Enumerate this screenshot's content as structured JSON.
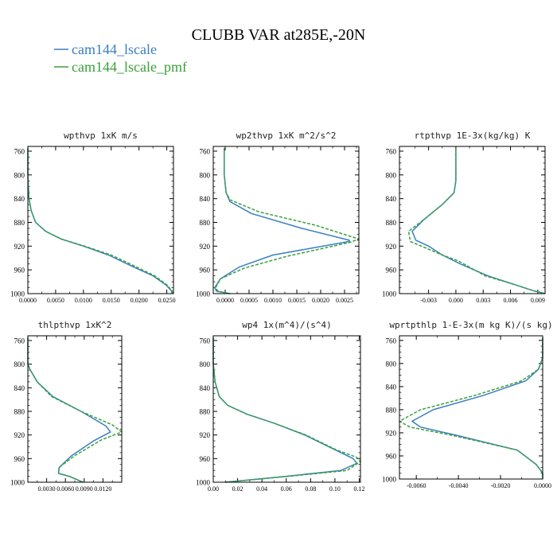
{
  "figure": {
    "title": "CLUBB VAR at285E,-20N",
    "legend": [
      {
        "label": "cam144_lscale",
        "color": "#3a7fc1"
      },
      {
        "label": "cam144_lscale_pmf",
        "color": "#3aa03a"
      }
    ]
  },
  "chart_data": [
    {
      "type": "line",
      "title": "wpthvp  1xK m/s",
      "xlim": [
        0,
        0.0262
      ],
      "ylim": [
        1000,
        752
      ],
      "xticks": [
        0,
        0.005,
        0.01,
        0.015,
        0.02,
        0.025
      ],
      "xticklabels": [
        "0.0000",
        "0.0050",
        "0.0100",
        "0.0150",
        "0.0200",
        "0.0250"
      ],
      "yticks": [
        760,
        800,
        840,
        880,
        920,
        960,
        1000
      ],
      "series": [
        {
          "name": "cam144_lscale",
          "color": "#3a7fc1",
          "dash": "",
          "x": [
            0,
            0,
            0.0002,
            0.0006,
            0.0014,
            0.0032,
            0.006,
            0.01,
            0.0145,
            0.019,
            0.0225,
            0.0248,
            0.0258,
            0.026
          ],
          "y": [
            755,
            800,
            840,
            860,
            880,
            895,
            908,
            920,
            935,
            955,
            970,
            985,
            995,
            1000
          ]
        },
        {
          "name": "cam144_lscale_pmf",
          "color": "#3aa03a",
          "dash": "4 2",
          "x": [
            0,
            0,
            0.0002,
            0.0006,
            0.0014,
            0.0032,
            0.006,
            0.0102,
            0.015,
            0.0195,
            0.0228,
            0.025,
            0.0259,
            0.0262
          ],
          "y": [
            755,
            800,
            840,
            860,
            880,
            895,
            908,
            920,
            935,
            955,
            970,
            985,
            995,
            1000
          ]
        }
      ]
    },
    {
      "type": "line",
      "title": "wp2thvp  1xK m^2/s^2",
      "xlim": [
        -0.00025,
        0.0028
      ],
      "ylim": [
        1000,
        752
      ],
      "xticks": [
        0,
        0.0005,
        0.001,
        0.0015,
        0.002,
        0.0025
      ],
      "xticklabels": [
        "0.0000",
        "0.0005",
        "0.0010",
        "0.0015",
        "0.0020",
        "0.0025"
      ],
      "yticks": [
        760,
        800,
        840,
        880,
        920,
        960,
        1000
      ],
      "series": [
        {
          "name": "cam144_lscale",
          "color": "#3a7fc1",
          "dash": "",
          "x": [
            -2e-05,
            -2e-05,
            2e-05,
            0.0001,
            0.00055,
            0.0016,
            0.0026,
            0.0026,
            0.001,
            0.0003,
            -0.0001,
            -0.00022,
            -0.00018,
            0.0001
          ],
          "y": [
            755,
            800,
            830,
            845,
            865,
            890,
            910,
            912,
            935,
            955,
            975,
            990,
            996,
            1000
          ]
        },
        {
          "name": "cam144_lscale_pmf",
          "color": "#3aa03a",
          "dash": "4 2",
          "x": [
            -2e-05,
            -2e-05,
            2e-05,
            0.0001,
            0.0007,
            0.0019,
            0.0028,
            0.0026,
            0.0013,
            0.0004,
            -0.0001,
            -0.0002,
            -0.00015,
            0.0001
          ],
          "y": [
            755,
            800,
            830,
            842,
            862,
            885,
            908,
            914,
            937,
            957,
            975,
            990,
            996,
            1000
          ]
        }
      ]
    },
    {
      "type": "line",
      "title": "rtpthvp  1E-3x(kg/kg) K",
      "xlim": [
        -0.0062,
        0.0098
      ],
      "ylim": [
        1000,
        752
      ],
      "xticks": [
        -0.003,
        0,
        0.003,
        0.006,
        0.009
      ],
      "xticklabels": [
        "-0.003",
        "0.000",
        "0.003",
        "0.006",
        "0.009"
      ],
      "yticks": [
        760,
        800,
        840,
        880,
        920,
        960,
        1000
      ],
      "series": [
        {
          "name": "cam144_lscale",
          "color": "#3a7fc1",
          "dash": "",
          "x": [
            0,
            0,
            -0.0002,
            -0.0015,
            -0.0035,
            -0.0048,
            -0.0044,
            -0.003,
            -0.0015,
            0.0005,
            0.0035,
            0.0065,
            0.0085,
            0.0098
          ],
          "y": [
            755,
            810,
            830,
            850,
            875,
            895,
            910,
            920,
            935,
            950,
            970,
            985,
            995,
            1000
          ]
        },
        {
          "name": "cam144_lscale_pmf",
          "color": "#3aa03a",
          "dash": "4 2",
          "x": [
            0,
            0,
            -0.0002,
            -0.0015,
            -0.0035,
            -0.0052,
            -0.005,
            -0.0038,
            -0.0015,
            0.0003,
            0.0032,
            0.0065,
            0.0085,
            0.0098
          ],
          "y": [
            755,
            810,
            830,
            850,
            875,
            895,
            912,
            920,
            935,
            945,
            970,
            985,
            995,
            1000
          ]
        }
      ]
    },
    {
      "type": "line",
      "title": "thlpthvp  1xK^2",
      "xlim": [
        0,
        0.015
      ],
      "ylim": [
        1000,
        752
      ],
      "xticks": [
        0.003,
        0.006,
        0.009,
        0.012
      ],
      "xticklabels": [
        "0.0030",
        "0.0060",
        "0.0090",
        "0.0120"
      ],
      "yticks": [
        760,
        800,
        840,
        880,
        920,
        960,
        1000
      ],
      "series": [
        {
          "name": "cam144_lscale",
          "color": "#3a7fc1",
          "dash": "",
          "x": [
            0,
            0,
            0.0004,
            0.0015,
            0.004,
            0.0085,
            0.0125,
            0.0132,
            0.0105,
            0.007,
            0.005,
            0.0049,
            0.0066,
            0.0088
          ],
          "y": [
            755,
            800,
            810,
            830,
            855,
            880,
            905,
            915,
            930,
            955,
            975,
            985,
            990,
            1000
          ]
        },
        {
          "name": "cam144_lscale_pmf",
          "color": "#3aa03a",
          "dash": "4 2",
          "x": [
            0,
            0,
            0.0004,
            0.0015,
            0.0038,
            0.0085,
            0.0135,
            0.015,
            0.0118,
            0.0075,
            0.005,
            0.0049,
            0.0066,
            0.0088
          ],
          "y": [
            755,
            800,
            810,
            830,
            855,
            880,
            903,
            915,
            928,
            955,
            975,
            985,
            990,
            1000
          ]
        }
      ]
    },
    {
      "type": "line",
      "title": "wp4  1x(m^4)/(s^4)",
      "xlim": [
        0,
        0.121
      ],
      "ylim": [
        1000,
        752
      ],
      "xticks": [
        0,
        0.02,
        0.04,
        0.06,
        0.08,
        0.1,
        0.12
      ],
      "xticklabels": [
        "0.00",
        "0.02",
        "0.04",
        "0.06",
        "0.08",
        "0.10",
        "0.12"
      ],
      "yticks": [
        760,
        800,
        840,
        880,
        920,
        960,
        1000
      ],
      "series": [
        {
          "name": "cam144_lscale",
          "color": "#3a7fc1",
          "dash": "",
          "x": [
            0,
            0,
            0.0015,
            0.005,
            0.012,
            0.028,
            0.05,
            0.075,
            0.1,
            0.115,
            0.118,
            0.105,
            0.06,
            0.01
          ],
          "y": [
            755,
            800,
            830,
            855,
            870,
            885,
            900,
            920,
            945,
            960,
            968,
            980,
            990,
            1000
          ]
        },
        {
          "name": "cam144_lscale_pmf",
          "color": "#3aa03a",
          "dash": "4 2",
          "x": [
            0,
            0,
            0.0015,
            0.005,
            0.012,
            0.028,
            0.05,
            0.076,
            0.101,
            0.118,
            0.121,
            0.11,
            0.062,
            0.01
          ],
          "y": [
            755,
            800,
            830,
            855,
            870,
            885,
            900,
            920,
            945,
            958,
            965,
            980,
            990,
            1000
          ]
        }
      ]
    },
    {
      "type": "line",
      "title": "wprtpthlp  1-E-3x(m kg K)/(s kg)",
      "xlim": [
        -0.0068,
        0
      ],
      "ylim": [
        1000,
        752
      ],
      "xticks": [
        -0.006,
        -0.004,
        -0.002,
        0
      ],
      "xticklabels": [
        "-0.0060",
        "-0.0040",
        "-0.0020",
        "0.0000"
      ],
      "yticks": [
        760,
        800,
        840,
        880,
        920,
        960,
        1000
      ],
      "series": [
        {
          "name": "cam144_lscale",
          "color": "#3a7fc1",
          "dash": "",
          "x": [
            0,
            0,
            -0.0002,
            -0.0008,
            -0.0028,
            -0.0052,
            -0.0062,
            -0.0058,
            -0.004,
            -0.0012,
            -0.0003,
            0,
            0
          ],
          "y": [
            755,
            790,
            810,
            830,
            855,
            880,
            900,
            910,
            925,
            950,
            975,
            990,
            1000
          ]
        },
        {
          "name": "cam144_lscale_pmf",
          "color": "#3aa03a",
          "dash": "4 2",
          "x": [
            0,
            0,
            -0.0002,
            -0.001,
            -0.0032,
            -0.0058,
            -0.0068,
            -0.0063,
            -0.0042,
            -0.0012,
            -0.0003,
            0,
            0
          ],
          "y": [
            755,
            790,
            810,
            830,
            855,
            880,
            900,
            910,
            925,
            950,
            975,
            990,
            1000
          ]
        }
      ]
    }
  ]
}
